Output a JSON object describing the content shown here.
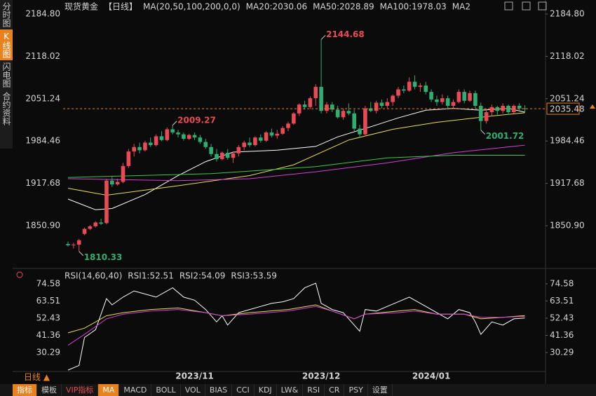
{
  "header": {
    "instrument": "现货黄金",
    "period": "【日线】",
    "ma_params": "MA(20,50,100,200,0,0)"
  },
  "sidebar": [
    "分时图",
    "K线图",
    "闪电图",
    "合约资料"
  ],
  "toolbar": [
    "指标",
    "模板",
    "VIP指标",
    "MA",
    "MACD",
    "BOLL",
    "VOL",
    "BIAS",
    "CCI",
    "KDJ",
    "LW&",
    "RSI",
    "CR",
    "PSY",
    "设置"
  ],
  "period_button": "日线 ▲",
  "chart_data": [
    {
      "type": "candlestick",
      "up_color": "#e84b55",
      "down_color": "#2fae73",
      "categories": [
        null,
        null,
        null,
        null,
        null,
        null,
        null,
        null,
        null,
        null,
        null,
        null,
        null,
        null,
        null,
        null,
        null,
        null,
        null,
        null,
        null,
        null,
        null,
        "2023/11",
        null,
        null,
        null,
        null,
        null,
        null,
        null,
        null,
        null,
        null,
        null,
        null,
        null,
        null,
        null,
        null,
        null,
        null,
        null,
        null,
        null,
        null,
        "2023/12",
        null,
        null,
        null,
        null,
        null,
        null,
        null,
        null,
        null,
        null,
        null,
        null,
        null,
        null,
        null,
        null,
        null,
        null,
        null,
        "2024/01",
        null,
        null,
        null,
        null,
        null,
        null,
        null,
        null,
        null,
        null,
        null,
        null,
        null,
        null,
        null,
        null,
        null
      ],
      "candles": [
        [
          1822,
          1826,
          1818,
          1820
        ],
        [
          1820,
          1824,
          1815,
          1821
        ],
        [
          1821,
          1830,
          1810.33,
          1828
        ],
        [
          1838,
          1848,
          1836,
          1846
        ],
        [
          1846,
          1852,
          1844,
          1850
        ],
        [
          1850,
          1858,
          1848,
          1856
        ],
        [
          1856,
          1862,
          1852,
          1854
        ],
        [
          1855,
          1925,
          1853,
          1922
        ],
        [
          1922,
          1928,
          1912,
          1916
        ],
        [
          1916,
          1925,
          1914,
          1920
        ],
        [
          1920,
          1950,
          1918,
          1945
        ],
        [
          1945,
          1972,
          1942,
          1968
        ],
        [
          1968,
          1980,
          1960,
          1975
        ],
        [
          1975,
          1982,
          1965,
          1970
        ],
        [
          1970,
          1985,
          1968,
          1982
        ],
        [
          1982,
          1990,
          1975,
          1978
        ],
        [
          1978,
          1995,
          1976,
          1992
        ],
        [
          1992,
          2000,
          1984,
          1986
        ],
        [
          1986,
          2006,
          1984,
          2003
        ],
        [
          2003,
          2009.27,
          1995,
          1998
        ],
        [
          1998,
          2002,
          1990,
          1995
        ],
        [
          1995,
          1998,
          1985,
          1988
        ],
        [
          1988,
          1996,
          1986,
          1994
        ],
        [
          1994,
          1998,
          1986,
          1990
        ],
        [
          1990,
          1994,
          1980,
          1983
        ],
        [
          1983,
          1988,
          1972,
          1975
        ],
        [
          1975,
          1980,
          1960,
          1964
        ],
        [
          1964,
          1972,
          1952,
          1956
        ],
        [
          1956,
          1968,
          1954,
          1966
        ],
        [
          1966,
          1972,
          1955,
          1958
        ],
        [
          1958,
          1968,
          1950,
          1965
        ],
        [
          1965,
          1978,
          1960,
          1975
        ],
        [
          1975,
          1985,
          1970,
          1982
        ],
        [
          1982,
          1990,
          1975,
          1978
        ],
        [
          1978,
          1992,
          1976,
          1990
        ],
        [
          1990,
          1995,
          1982,
          1985
        ],
        [
          1985,
          2000,
          1983,
          1998
        ],
        [
          1998,
          2004,
          1990,
          1993
        ],
        [
          1993,
          2002,
          1988,
          1996
        ],
        [
          1996,
          2008,
          1994,
          2005
        ],
        [
          2005,
          2015,
          2000,
          2012
        ],
        [
          2012,
          2030,
          2010,
          2028
        ],
        [
          2028,
          2044,
          2024,
          2042
        ],
        [
          2042,
          2048,
          2034,
          2038
        ],
        [
          2038,
          2055,
          2035,
          2052
        ],
        [
          2052,
          2074,
          2040,
          2070
        ],
        [
          2070,
          2144.68,
          2028,
          2032
        ],
        [
          2032,
          2046,
          2028,
          2042
        ],
        [
          2042,
          2046,
          2030,
          2034
        ],
        [
          2034,
          2040,
          2020,
          2022
        ],
        [
          2022,
          2036,
          2018,
          2032
        ],
        [
          2032,
          2044,
          2025,
          2028
        ],
        [
          2028,
          2034,
          2000,
          2004
        ],
        [
          2004,
          2010,
          1990,
          1995
        ],
        [
          1995,
          2040,
          1992,
          2036
        ],
        [
          2036,
          2046,
          2030,
          2032
        ],
        [
          2032,
          2048,
          2028,
          2045
        ],
        [
          2045,
          2050,
          2036,
          2040
        ],
        [
          2040,
          2052,
          2036,
          2046
        ],
        [
          2046,
          2058,
          2040,
          2056
        ],
        [
          2056,
          2070,
          2052,
          2066
        ],
        [
          2066,
          2072,
          2060,
          2064
        ],
        [
          2064,
          2085,
          2062,
          2078
        ],
        [
          2078,
          2088,
          2066,
          2070
        ],
        [
          2070,
          2076,
          2062,
          2072
        ],
        [
          2072,
          2078,
          2058,
          2062
        ],
        [
          2062,
          2066,
          2046,
          2050
        ],
        [
          2050,
          2056,
          2040,
          2046
        ],
        [
          2046,
          2058,
          2042,
          2052
        ],
        [
          2052,
          2056,
          2034,
          2040
        ],
        [
          2040,
          2050,
          2035,
          2046
        ],
        [
          2046,
          2066,
          2044,
          2062
        ],
        [
          2062,
          2066,
          2044,
          2048
        ],
        [
          2048,
          2064,
          2046,
          2060
        ],
        [
          2060,
          2064,
          2035,
          2040
        ],
        [
          2040,
          2045,
          2001.72,
          2016
        ],
        [
          2016,
          2036,
          2012,
          2030
        ],
        [
          2030,
          2042,
          2024,
          2038
        ],
        [
          2038,
          2040,
          2026,
          2032
        ],
        [
          2032,
          2044,
          2028,
          2040
        ],
        [
          2040,
          2042,
          2026,
          2030
        ],
        [
          2030,
          2042,
          2028,
          2040
        ],
        [
          2040,
          2044,
          2032,
          2036
        ],
        [
          2036,
          2041,
          2030,
          2035.48
        ]
      ],
      "series": [
        {
          "name": "MA20:2030.06",
          "color": "#ffffff",
          "x": [
            0,
            5,
            8,
            14,
            20,
            25,
            30,
            38,
            45,
            49,
            55,
            60,
            65,
            70,
            75,
            80,
            83
          ],
          "values": [
            1893,
            1876,
            1878,
            1900,
            1930,
            1952,
            1967,
            1970,
            1976,
            1991,
            2007,
            2021,
            2033,
            2036,
            2033,
            2036,
            2030
          ]
        },
        {
          "name": "MA50:2028.89",
          "color": "#e8e04a",
          "x": [
            0,
            7,
            20,
            33,
            41,
            51,
            59,
            67,
            77,
            83
          ],
          "values": [
            1910,
            1899,
            1914,
            1930,
            1947,
            1986,
            2003,
            2014,
            2024,
            2029
          ]
        },
        {
          "name": "MA100:1978.03",
          "color": "#d43fd8",
          "x": [
            0,
            20,
            33,
            45,
            58,
            70,
            83
          ],
          "values": [
            1925,
            1922,
            1925,
            1936,
            1950,
            1966,
            1978
          ]
        },
        {
          "name": "MA2",
          "color": "#3ec94a",
          "x": [
            0,
            26,
            45,
            58,
            70,
            83
          ],
          "values": [
            1927,
            1933,
            1944,
            1958,
            1962,
            1962
          ]
        }
      ],
      "high_labels": [
        2144.68,
        2009.27
      ],
      "low_labels": [
        1810.33,
        2001.72
      ],
      "last_price": 2035.48,
      "last_price_color": "#e8821e",
      "ylim": [
        1783.5,
        2201.4
      ],
      "yticks": [
        {
          "value": 2184.8,
          "label": "2184.80"
        },
        2118.02,
        2051.24,
        1984.46,
        1917.68,
        {
          "value": 1850.9,
          "label": "1850.90"
        }
      ],
      "grid": false
    },
    {
      "type": "line",
      "title": "RSI(14,60,40)",
      "series": [
        {
          "name": "RSI1:52.51",
          "color": "#ffffff",
          "x": [
            0,
            2,
            3,
            5,
            7,
            8,
            10,
            12,
            14,
            16,
            18,
            19,
            21,
            23,
            25,
            27,
            28,
            29,
            31,
            33,
            35,
            37,
            39,
            41,
            43,
            45,
            46,
            48,
            50,
            52,
            53,
            54,
            56,
            58,
            60,
            62,
            63,
            65,
            67,
            69,
            71,
            73,
            74,
            75,
            77,
            79,
            81,
            83
          ],
          "values": [
            19,
            22,
            40,
            45,
            65,
            61,
            66,
            70,
            68,
            66,
            70,
            72,
            66,
            64,
            58,
            50,
            54,
            48,
            56,
            58,
            60,
            62,
            63,
            65,
            72,
            75,
            62,
            58,
            56,
            48,
            44,
            58,
            57,
            60,
            63,
            66,
            64,
            60,
            56,
            52,
            58,
            56,
            50,
            42,
            50,
            48,
            52,
            52.51
          ]
        },
        {
          "name": "RSI2:54.09",
          "color": "#e8e04a",
          "x": [
            0,
            3,
            7,
            10,
            15,
            20,
            25,
            28,
            33,
            40,
            45,
            48,
            52,
            54,
            60,
            63,
            67,
            72,
            75,
            79,
            83
          ],
          "values": [
            43,
            46,
            54,
            56,
            58,
            59,
            56,
            54,
            56,
            58,
            61,
            57,
            52,
            55,
            57,
            58,
            55,
            55,
            52,
            53,
            54.09
          ]
        },
        {
          "name": "RSI3:53.59",
          "color": "#d43fd8",
          "x": [
            0,
            3,
            7,
            10,
            15,
            20,
            25,
            28,
            33,
            40,
            45,
            48,
            52,
            54,
            60,
            63,
            67,
            72,
            75,
            79,
            83
          ],
          "values": [
            35,
            42,
            52,
            55,
            57,
            58,
            56,
            54,
            55,
            57,
            60,
            57,
            52,
            55,
            56,
            57,
            55,
            55,
            53,
            53,
            53.59
          ]
        }
      ],
      "ylim": [
        18.1,
        77.7
      ],
      "yticks": [
        74.58,
        63.51,
        52.43,
        41.36,
        30.29
      ],
      "grid": false
    }
  ]
}
